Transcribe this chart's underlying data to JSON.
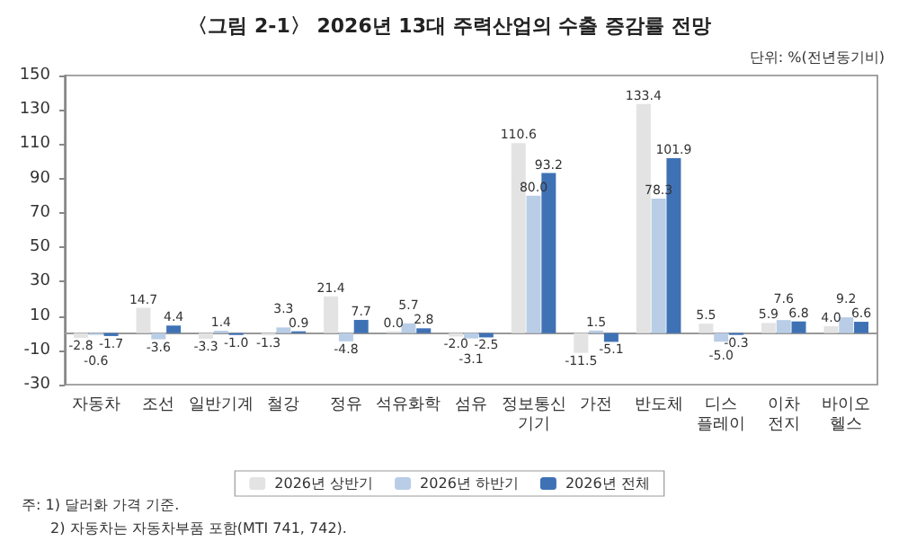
{
  "chart_data": {
    "type": "bar",
    "title": "〈그림 2-1〉 2026년 13대 주력산업의 수출 증감률 전망",
    "categories": [
      "자동차",
      "조선",
      "일반기계",
      "철강",
      "정유",
      "석유화학",
      "섬유",
      "정보통신\n기기",
      "가전",
      "반도체",
      "디스\n플레이",
      "이차\n전지",
      "바이오\n헬스"
    ],
    "series": [
      {
        "name": "2026년 상반기",
        "color": "#e3e3e3",
        "values": [
          -2.8,
          14.7,
          -3.3,
          -1.3,
          21.4,
          0.0,
          -2.0,
          110.6,
          -11.5,
          133.4,
          5.5,
          5.9,
          4.0
        ],
        "value_labels": [
          "-2.8",
          "14.7",
          "-3.3",
          "-1.3",
          "21.4",
          "0.0",
          "-2.0",
          "110.6",
          "-11.5",
          "133.4",
          "5.5",
          "5.9",
          "4.0"
        ]
      },
      {
        "name": "2026년 하반기",
        "color": "#b9cde6",
        "values": [
          -0.6,
          -3.6,
          1.4,
          3.3,
          -4.8,
          5.7,
          -3.1,
          80.0,
          1.5,
          78.3,
          -5.0,
          7.6,
          9.2
        ],
        "value_labels": [
          "-0.6",
          "-3.6",
          "1.4",
          "3.3",
          "-4.8",
          "5.7",
          "-3.1",
          "80.0",
          "1.5",
          "78.3",
          "-5.0",
          "7.6",
          "9.2"
        ]
      },
      {
        "name": "2026년 전체",
        "color": "#3f72b5",
        "values": [
          -1.7,
          4.4,
          -1.0,
          0.9,
          7.7,
          2.8,
          -2.5,
          93.2,
          -5.1,
          101.9,
          -0.3,
          6.8,
          6.6
        ],
        "value_labels": [
          "-1.7",
          "4.4",
          "-1.0",
          "0.9",
          "7.7",
          "2.8",
          "-2.5",
          "93.2",
          "-5.1",
          "101.9",
          "-0.3",
          "6.8",
          "6.6"
        ]
      }
    ],
    "ylim": [
      -30,
      150
    ],
    "yticks": [
      -30,
      -10,
      10,
      30,
      50,
      70,
      90,
      110,
      130,
      150
    ],
    "grid": false,
    "legend": "bottom",
    "annotations": [
      "단위: %(전년동기비)",
      "주: 1) 달러화 가격 기준.",
      "2) 자동차는 자동차부품 포함(MTI 741, 742)."
    ]
  }
}
